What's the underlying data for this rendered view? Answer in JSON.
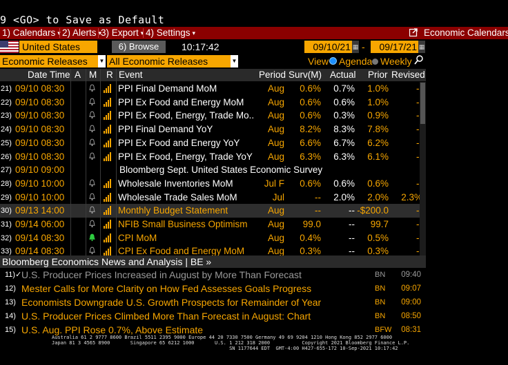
{
  "command_line": "9 <GO> to Save as Default",
  "menu": {
    "calendars": "1) Calendars",
    "alerts": "2) Alerts",
    "export": "3) Export",
    "settings": "4) Settings",
    "title": "Economic Calendars"
  },
  "filters": {
    "country": "United States",
    "browse": "6) Browse",
    "time": "10:17:42",
    "date_from": "09/10/21",
    "date_to": "09/17/21",
    "release_type": "Economic Releases",
    "release_filter": "All Economic Releases",
    "view_label": "View",
    "view_agenda": "Agenda",
    "view_weekly": "Weekly"
  },
  "columns": {
    "datetime": "Date Time",
    "a": "A",
    "m": "M",
    "r": "R",
    "event": "Event",
    "period": "Period",
    "survey": "Surv(M)",
    "actual": "Actual",
    "prior": "Prior",
    "revised": "Revised"
  },
  "rows": [
    {
      "num": "21)",
      "dt": "09/10 08:30",
      "bell": "gray",
      "rel": true,
      "event": "PPI Final Demand MoM",
      "period": "Aug",
      "survey": "0.6%",
      "actual": "0.7%",
      "prior": "1.0%",
      "revised": "--"
    },
    {
      "num": "22)",
      "dt": "09/10 08:30",
      "bell": "gray",
      "rel": true,
      "event": "PPI Ex Food and Energy MoM",
      "period": "Aug",
      "survey": "0.6%",
      "actual": "0.6%",
      "prior": "1.0%",
      "revised": "--"
    },
    {
      "num": "23)",
      "dt": "09/10 08:30",
      "bell": "gray",
      "rel": true,
      "event": "PPI Ex Food, Energy, Trade Mo...",
      "period": "Aug",
      "survey": "0.6%",
      "actual": "0.3%",
      "prior": "0.9%",
      "revised": "--"
    },
    {
      "num": "24)",
      "dt": "09/10 08:30",
      "bell": "gray",
      "rel": true,
      "event": "PPI Final Demand YoY",
      "period": "Aug",
      "survey": "8.2%",
      "actual": "8.3%",
      "prior": "7.8%",
      "revised": "--"
    },
    {
      "num": "25)",
      "dt": "09/10 08:30",
      "bell": "gray",
      "rel": true,
      "event": "PPI Ex Food and Energy YoY",
      "period": "Aug",
      "survey": "6.6%",
      "actual": "6.7%",
      "prior": "6.2%",
      "revised": "--"
    },
    {
      "num": "26)",
      "dt": "09/10 08:30",
      "bell": "gray",
      "rel": true,
      "event": "PPI Ex Food, Energy, Trade YoY",
      "period": "Aug",
      "survey": "6.3%",
      "actual": "6.3%",
      "prior": "6.1%",
      "revised": "--"
    },
    {
      "num": "27)",
      "dt": "09/10 09:00",
      "bell": "none",
      "rel": false,
      "event": "Bloomberg Sept. United States Economic Survey",
      "period": "",
      "survey": "",
      "actual": "",
      "prior": "",
      "revised": "",
      "wide": true
    },
    {
      "num": "28)",
      "dt": "09/10 10:00",
      "bell": "gray",
      "rel": true,
      "event": "Wholesale Inventories MoM",
      "period": "Jul F",
      "survey": "0.6%",
      "actual": "0.6%",
      "prior": "0.6%",
      "revised": "--"
    },
    {
      "num": "29)",
      "dt": "09/10 10:00",
      "bell": "gray",
      "rel": true,
      "event": "Wholesale Trade Sales MoM",
      "period": "Jul",
      "survey": "--",
      "actual": "2.0%",
      "prior": "2.0%",
      "revised": "2.3%"
    },
    {
      "num": "30)",
      "dt": "09/13 14:00",
      "bell": "gray",
      "rel": true,
      "event": "Monthly Budget Statement",
      "period": "Aug",
      "survey": "--",
      "actual": "--",
      "prior": "-$200.0",
      "revised": "--",
      "sel": true,
      "orange": true
    },
    {
      "num": "31)",
      "dt": "09/14 06:00",
      "bell": "gray",
      "rel": true,
      "event": "NFIB Small Business Optimism",
      "period": "Aug",
      "survey": "99.0",
      "actual": "--",
      "prior": "99.7",
      "revised": "--",
      "orange": true
    },
    {
      "num": "32)",
      "dt": "09/14 08:30",
      "bell": "green",
      "rel": true,
      "event": "CPI MoM",
      "period": "Aug",
      "survey": "0.4%",
      "actual": "--",
      "prior": "0.5%",
      "revised": "--",
      "orange": true
    },
    {
      "num": "33)",
      "dt": "09/14 08:30",
      "bell": "gray",
      "rel": true,
      "event": "CPI Ex Food and Energy MoM",
      "period": "Aug",
      "survey": "0.3%",
      "actual": "--",
      "prior": "0.3%",
      "revised": "--",
      "orange": true
    }
  ],
  "news": {
    "header": "Bloomberg Economics News and Analysis | BE »",
    "items": [
      {
        "num": "11)",
        "check": "✓",
        "headline": "U.S. Producer Prices Increased in August by More Than Forecast",
        "src": "BN",
        "time": "09:40",
        "read": true
      },
      {
        "num": "12)",
        "check": "",
        "headline": "Mester Calls for More Clarity on How Fed Assesses Goals Progress",
        "src": "BN",
        "time": "09:07",
        "read": false
      },
      {
        "num": "13)",
        "check": "",
        "headline": "Economists Downgrade U.S. Growth Prospects for Remainder of Year",
        "src": "BN",
        "time": "09:00",
        "read": false
      },
      {
        "num": "14)",
        "check": "",
        "headline": "U.S. Producer Prices Climbed More Than Forecast in August: Chart",
        "src": "BN",
        "time": "08:50",
        "read": false
      },
      {
        "num": "15)",
        "check": "",
        "headline": "U.S. Aug. PPI Rose 0.7%, Above Estimate",
        "src": "BFW",
        "time": "08:31",
        "read": false
      }
    ]
  },
  "footer": {
    "line1": "Australia 61 2 9777 8600 Brazil 5511 2395 9000 Europe 44 20 7330 7500 Germany 49 69 9204 1210 Hong Kong 852 2977 6000",
    "line2": "Japan 81 3 4565 8900       Singapore 65 6212 1000       U.S. 1 212 318 2000           Copyright 2021 Bloomberg Finance L.P.",
    "line3": "                                                             SN 1177644 EDT  GMT-4:00 H427-655-172 10-Sep-2021 10:17:42"
  },
  "colors": {
    "accent": "#f7a600",
    "menubar": "#8b0000",
    "bell_active": "#2ecc40"
  }
}
